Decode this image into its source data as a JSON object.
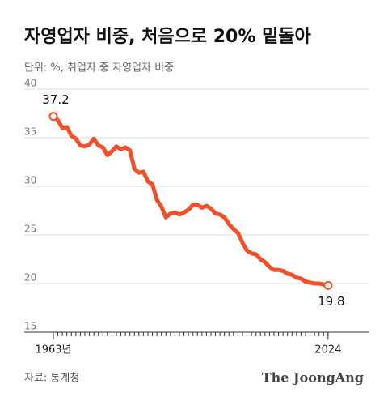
{
  "chart_data": {
    "type": "line",
    "title": "자영업자 비중, 처음으로 20% 밑돌아",
    "subtitle": "단위: %, 취업자 중 자영업자 비중",
    "source": "자료: 통계청",
    "brand": "The JoongAng",
    "x": [
      1963,
      1964,
      1965,
      1966,
      1967,
      1968,
      1969,
      1970,
      1971,
      1972,
      1973,
      1974,
      1975,
      1976,
      1977,
      1978,
      1979,
      1980,
      1981,
      1982,
      1983,
      1984,
      1985,
      1986,
      1987,
      1988,
      1989,
      1990,
      1991,
      1992,
      1993,
      1994,
      1995,
      1996,
      1997,
      1998,
      1999,
      2000,
      2001,
      2002,
      2003,
      2004,
      2005,
      2006,
      2007,
      2008,
      2009,
      2010,
      2011,
      2012,
      2013,
      2014,
      2015,
      2016,
      2017,
      2018,
      2019,
      2020,
      2021,
      2022,
      2023,
      2024
    ],
    "series": [
      {
        "name": "자영업자 비중",
        "color": "#f0502a",
        "values": [
          37.2,
          36.8,
          36.0,
          36.1,
          35.2,
          34.9,
          34.2,
          34.1,
          34.3,
          34.9,
          34.2,
          34.0,
          33.2,
          33.6,
          34.1,
          33.8,
          34.0,
          33.7,
          31.8,
          31.4,
          31.5,
          30.5,
          30.2,
          28.6,
          27.9,
          26.8,
          27.2,
          27.3,
          27.1,
          27.3,
          27.6,
          28.1,
          28.1,
          27.8,
          28.0,
          27.7,
          27.2,
          27.1,
          26.8,
          26.1,
          25.6,
          25.2,
          24.2,
          23.4,
          23.1,
          23.0,
          22.5,
          22.2,
          21.7,
          21.4,
          21.4,
          21.3,
          21.0,
          20.9,
          20.6,
          20.5,
          20.2,
          20.1,
          20.0,
          20.0,
          19.9,
          19.8
        ]
      }
    ],
    "xlim": [
      1962,
      2033
    ],
    "xticks": [
      {
        "value": 1963,
        "label": "1963년"
      },
      2024
    ],
    "ylim": [
      15,
      40
    ],
    "yticks": [
      15,
      20,
      25,
      30,
      35,
      40
    ],
    "grid": true
  }
}
